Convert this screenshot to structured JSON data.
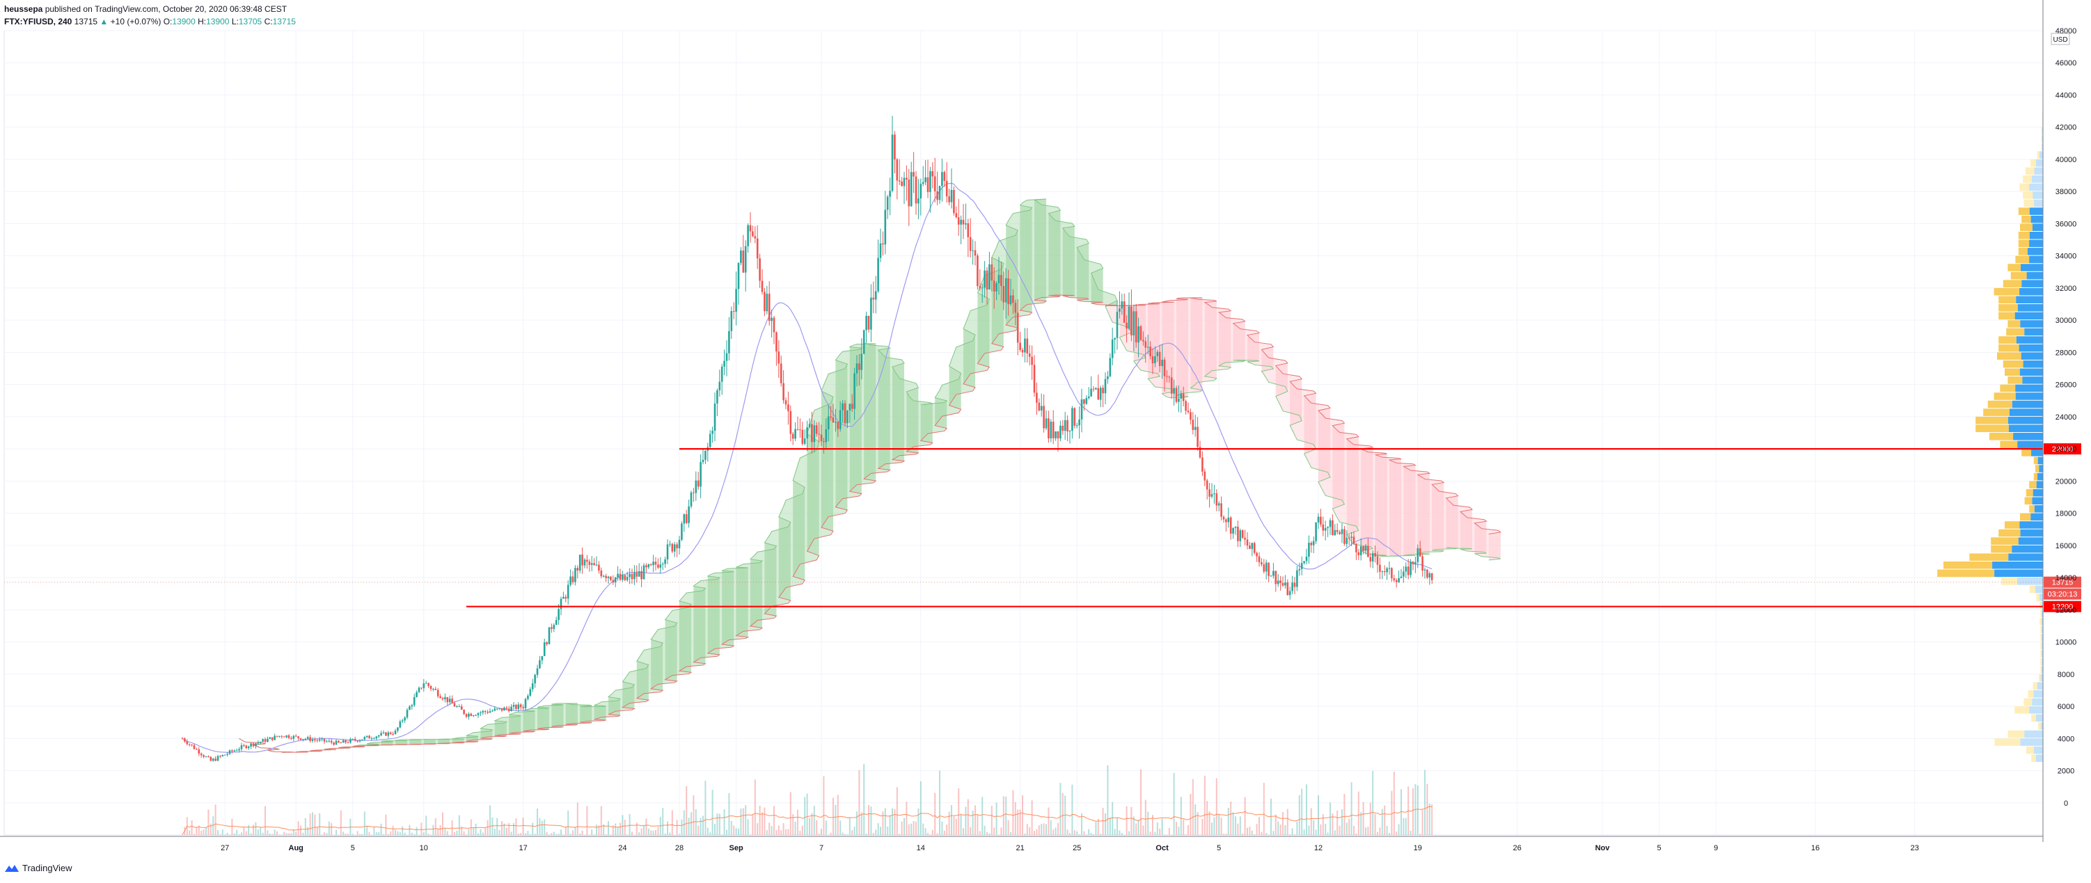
{
  "header": {
    "author": "heussepa",
    "published_text": "published on TradingView.com, October 20, 2020 06:39:48 CEST",
    "symbol": "FTX:YFIUSD, 240",
    "last": "13715",
    "change_arrow": "▲",
    "change": "+10 (+0.07%)",
    "o_label": "O:",
    "o_value": "13900",
    "h_label": "H:",
    "h_value": "13900",
    "l_label": "L:",
    "l_value": "13705",
    "c_label": "C:",
    "c_value": "13715"
  },
  "footer": {
    "brand": "TradingView"
  },
  "colors": {
    "up": "#26a69a",
    "down": "#ef5350",
    "support_line": "#ff0000",
    "baseline": "#2962ff",
    "cloud_bull": "#a5d6a7",
    "cloud_bear": "#ffcdd2",
    "vp_up": "#2196f3",
    "vp_down": "#f7c548",
    "vp_up_light": "#bbdefb",
    "vp_down_light": "#ffecb3",
    "volume_ma": "#ff8c5a"
  },
  "chart_data": {
    "type": "candlestick",
    "currency_label": "USD",
    "ylim": [
      -2000,
      48000
    ],
    "y_ticks": [
      "0",
      "2000",
      "4000",
      "6000",
      "8000",
      "10000",
      "12000",
      "14000",
      "16000",
      "18000",
      "20000",
      "22000",
      "24000",
      "26000",
      "28000",
      "30000",
      "32000",
      "34000",
      "36000",
      "38000",
      "40000",
      "42000",
      "44000",
      "46000",
      "48000"
    ],
    "x_ticks": [
      "27",
      "Aug",
      "5",
      "10",
      "17",
      "24",
      "28",
      "Sep",
      "7",
      "14",
      "21",
      "25",
      "Oct",
      "5",
      "12",
      "19",
      "26",
      "Nov",
      "5",
      "9",
      "16",
      "23"
    ],
    "x_tick_dates": [
      "2020-07-27",
      "2020-08-01",
      "2020-08-05",
      "2020-08-10",
      "2020-08-17",
      "2020-08-24",
      "2020-08-28",
      "2020-09-01",
      "2020-09-07",
      "2020-09-14",
      "2020-09-21",
      "2020-09-25",
      "2020-10-01",
      "2020-10-05",
      "2020-10-12",
      "2020-10-19",
      "2020-10-26",
      "2020-11-01",
      "2020-11-05",
      "2020-11-09",
      "2020-11-16",
      "2020-11-23"
    ],
    "price_path": [
      [
        "2020-07-24",
        4000
      ],
      [
        "2020-07-26",
        2600
      ],
      [
        "2020-07-28",
        3400
      ],
      [
        "2020-07-31",
        4200
      ],
      [
        "2020-08-04",
        3700
      ],
      [
        "2020-08-08",
        4400
      ],
      [
        "2020-08-10",
        7500
      ],
      [
        "2020-08-13",
        5500
      ],
      [
        "2020-08-17",
        6000
      ],
      [
        "2020-08-19",
        11000
      ],
      [
        "2020-08-21",
        15000
      ],
      [
        "2020-08-24",
        13800
      ],
      [
        "2020-08-26",
        14500
      ],
      [
        "2020-08-28",
        16500
      ],
      [
        "2020-08-30",
        22000
      ],
      [
        "2020-09-01",
        32000
      ],
      [
        "2020-09-02",
        36000
      ],
      [
        "2020-09-04",
        27000
      ],
      [
        "2020-09-05",
        23000
      ],
      [
        "2020-09-07",
        23000
      ],
      [
        "2020-09-09",
        24500
      ],
      [
        "2020-09-11",
        33000
      ],
      [
        "2020-09-12",
        40500
      ],
      [
        "2020-09-13",
        38000
      ],
      [
        "2020-09-16",
        38500
      ],
      [
        "2020-09-18",
        33000
      ],
      [
        "2020-09-20",
        32000
      ],
      [
        "2020-09-23",
        23000
      ],
      [
        "2020-09-25",
        24000
      ],
      [
        "2020-09-27",
        26000
      ],
      [
        "2020-09-28",
        31000
      ],
      [
        "2020-09-30",
        28500
      ],
      [
        "2020-10-03",
        24000
      ],
      [
        "2020-10-04",
        20000
      ],
      [
        "2020-10-06",
        17000
      ],
      [
        "2020-10-09",
        14000
      ],
      [
        "2020-10-10",
        13000
      ],
      [
        "2020-10-12",
        17500
      ],
      [
        "2020-10-14",
        16500
      ],
      [
        "2020-10-17",
        14200
      ],
      [
        "2020-10-18",
        14000
      ],
      [
        "2020-10-19",
        15500
      ],
      [
        "2020-10-20",
        13715
      ]
    ],
    "horizontal_lines": [
      {
        "price": 22000,
        "label": "22000",
        "from": "2020-08-28"
      },
      {
        "price": 12200,
        "label": "12200",
        "from": "2020-08-13"
      }
    ],
    "price_labels": {
      "last": "13715",
      "countdown": "03:20:13"
    },
    "volume_note": "volume bars with moving average",
    "volume_profile": true,
    "ichimoku": true
  }
}
